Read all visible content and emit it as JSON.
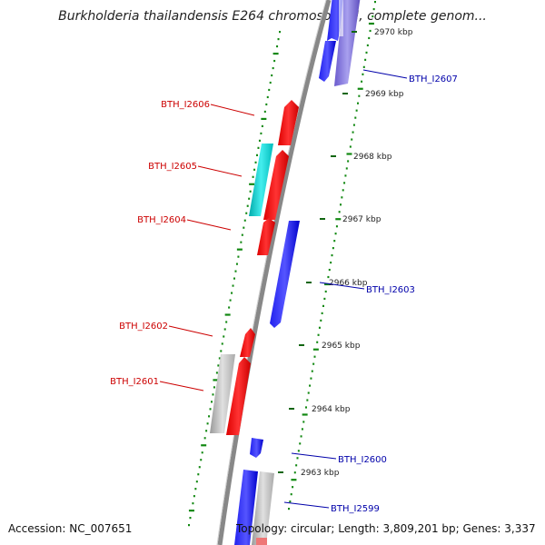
{
  "title": "Burkholderia thailandensis E264 chromosome I, complete genom...",
  "footer": {
    "accession": "Accession: NC_007651",
    "summary": "Topology: circular; Length: 3,809,201 bp; Genes: 3,337"
  },
  "ticks": [
    {
      "label": "2970 kbp",
      "kbp": 2970
    },
    {
      "label": "2969 kbp",
      "kbp": 2969
    },
    {
      "label": "2968 kbp",
      "kbp": 2968
    },
    {
      "label": "2967 kbp",
      "kbp": 2967
    },
    {
      "label": "2966 kbp",
      "kbp": 2966
    },
    {
      "label": "2965 kbp",
      "kbp": 2965
    },
    {
      "label": "2964 kbp",
      "kbp": 2964
    },
    {
      "label": "2963 kbp",
      "kbp": 2963
    }
  ],
  "genes_left": [
    {
      "name": "BTH_I2606",
      "color": "#cc0000"
    },
    {
      "name": "BTH_I2605",
      "color": "#cc0000"
    },
    {
      "name": "BTH_I2604",
      "color": "#cc0000"
    },
    {
      "name": "BTH_I2602",
      "color": "#cc0000"
    },
    {
      "name": "BTH_I2601",
      "color": "#cc0000"
    }
  ],
  "genes_right": [
    {
      "name": "BTH_I2607",
      "color": "#0000aa"
    },
    {
      "name": "BTH_I2603",
      "color": "#0000aa"
    },
    {
      "name": "BTH_I2600",
      "color": "#0000aa"
    },
    {
      "name": "BTH_I2599",
      "color": "#0000aa"
    }
  ],
  "colors": {
    "forward": "#ff0000",
    "reverse": "#0000ff",
    "rna": "#00cccc",
    "other": "#c0c0c0",
    "backbone": "#888888",
    "gc_dots": "#118811"
  }
}
